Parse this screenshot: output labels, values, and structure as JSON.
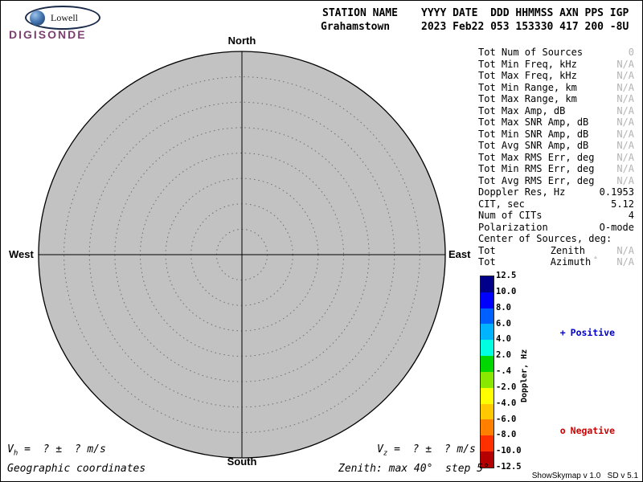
{
  "logo": {
    "brand": "Lowell",
    "product": "DIGISONDE"
  },
  "header": {
    "station_label": "STATION NAME",
    "station_name": "Grahamstown",
    "fields_header": "YYYY DATE  DDD HHMMSS AXN PPS IGP",
    "fields_values": "2023 Feb22 053 153330 417 200 -8U"
  },
  "compass": {
    "north": "North",
    "south": "South",
    "west": "West",
    "east": "East"
  },
  "stats": {
    "rows": [
      {
        "label": "Tot Num of Sources",
        "value": "0",
        "muted": true
      },
      {
        "label": "Tot Min Freq, kHz",
        "value": "N/A",
        "muted": true
      },
      {
        "label": "Tot Max Freq, kHz",
        "value": "N/A",
        "muted": true
      },
      {
        "label": "Tot Min Range, km",
        "value": "N/A",
        "muted": true
      },
      {
        "label": "Tot Max Range, km",
        "value": "N/A",
        "muted": true
      },
      {
        "label": "Tot Max Amp, dB",
        "value": "N/A",
        "muted": true
      },
      {
        "label": "Tot Max SNR Amp, dB",
        "value": "N/A",
        "muted": true
      },
      {
        "label": "Tot Min SNR Amp, dB",
        "value": "N/A",
        "muted": true
      },
      {
        "label": "Tot Avg SNR Amp, dB",
        "value": "N/A",
        "muted": true
      },
      {
        "label": "Tot Max RMS Err, deg",
        "value": "N/A",
        "muted": true
      },
      {
        "label": "Tot Min RMS Err, deg",
        "value": "N/A",
        "muted": true
      },
      {
        "label": "Tot Avg RMS Err, deg",
        "value": "N/A",
        "muted": true
      },
      {
        "label": "Doppler Res, Hz",
        "value": "0.1953",
        "muted": false
      },
      {
        "label": "CIT, sec",
        "value": "5.12",
        "muted": false
      },
      {
        "label": "Num of CITs",
        "value": "4",
        "muted": false
      },
      {
        "label": "Polarization",
        "value": "O-mode",
        "muted": false
      },
      {
        "label": "Center of Sources, deg:",
        "value": "",
        "muted": false
      },
      {
        "label": "Tot",
        "sublabel": "Zenith",
        "value": "N/A",
        "muted": true
      },
      {
        "label": "Tot",
        "sublabel": "Azimuth",
        "mark": "°",
        "value": "N/A",
        "muted": true
      }
    ]
  },
  "colorbar": {
    "title": "Doppler, Hz",
    "ticks": [
      "12.5",
      "10.0",
      "8.0",
      "6.0",
      "4.0",
      "2.0",
      "-.4",
      "-2.0",
      "-4.0",
      "-6.0",
      "-8.0",
      "-10.0",
      "-12.5"
    ],
    "segment_colors": [
      "#00008b",
      "#0000ff",
      "#0060ff",
      "#00b4ff",
      "#00ffe0",
      "#00d800",
      "#8ae800",
      "#ffff00",
      "#ffc800",
      "#ff8000",
      "#ff3000",
      "#b40000"
    ],
    "positive_marker": "+",
    "positive_label": "Positive",
    "positive_color": "#0000cc",
    "negative_marker": "o",
    "negative_label": "Negative",
    "negative_color": "#cc0000"
  },
  "footer": {
    "vh_symbol": "V",
    "vh_sub": "h",
    "vh_rest": " =  ? ±  ? m/s",
    "vz_symbol": "V",
    "vz_sub": "z",
    "vz_rest": " =  ? ±  ? m/s",
    "coordinates_label": "Geographic coordinates",
    "zenith_note": "Zenith: max 40°  step 5°",
    "version": "ShowSkymap v 1.0   SD v 5.1"
  },
  "chart_data": {
    "type": "scatter",
    "subtype": "polar-skymap",
    "title": "Grahamstown 2023 Feb22 053 153330",
    "points": [],
    "num_sources": 0,
    "zenith_max_deg": 40,
    "zenith_step_deg": 5,
    "zenith_rings_deg": [
      5,
      10,
      15,
      20,
      25,
      30,
      35,
      40
    ],
    "compass_labels": [
      "North",
      "East",
      "South",
      "West"
    ],
    "grid": "dotted concentric zenith rings with N-S / W-E crosshair",
    "legend_position": "right of colorbar",
    "colorbar": {
      "label": "Doppler, Hz",
      "min": -12.5,
      "max": 12.5,
      "tick_values": [
        12.5,
        10.0,
        8.0,
        6.0,
        4.0,
        2.0,
        -0.4,
        -2.0,
        -4.0,
        -6.0,
        -8.0,
        -10.0,
        -12.5
      ],
      "positive_meaning": "Positive Doppler (blue end)",
      "negative_meaning": "Negative Doppler (red end)"
    }
  }
}
